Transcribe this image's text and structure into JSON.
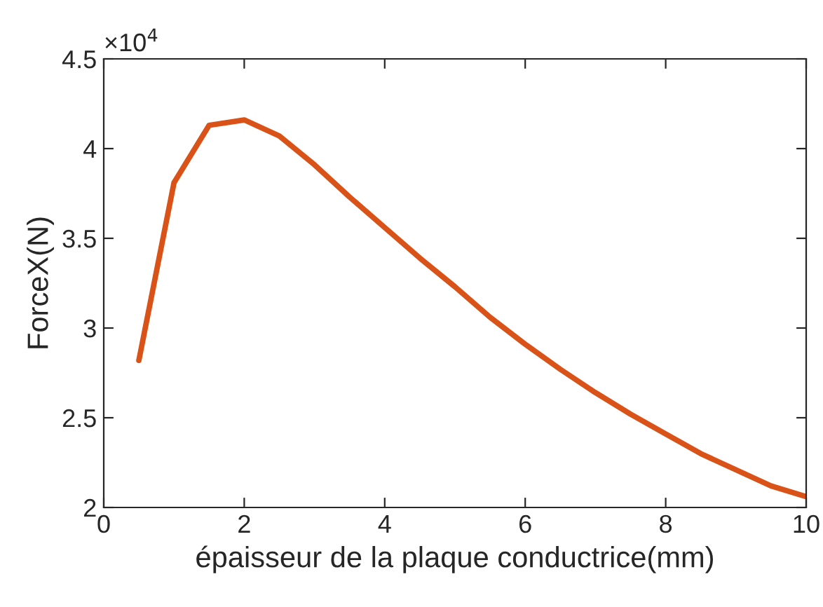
{
  "chart_data": {
    "type": "line",
    "xlabel": "épaisseur de la plaque conductrice(mm)",
    "ylabel": "ForceX(N)",
    "x": [
      0.5,
      1,
      1.5,
      2,
      2.5,
      3,
      3.5,
      4,
      4.5,
      5,
      5.5,
      6,
      6.5,
      7,
      7.5,
      8,
      8.5,
      9,
      9.5,
      10
    ],
    "series": [
      {
        "color": "#d95319",
        "values": [
          2.82,
          3.81,
          4.13,
          4.16,
          4.07,
          3.91,
          3.73,
          3.56,
          3.39,
          3.23,
          3.06,
          2.91,
          2.77,
          2.64,
          2.52,
          2.41,
          2.3,
          2.21,
          2.12,
          2.06
        ]
      }
    ],
    "xlim": [
      0,
      10
    ],
    "xticks": [
      0,
      2,
      4,
      6,
      8,
      10
    ],
    "ylim": [
      2,
      4.5
    ],
    "yticks": [
      2,
      2.5,
      3,
      3.5,
      4,
      4.5
    ],
    "annotations": [
      "×10$^{4}$"
    ],
    "grid": false,
    "legend": false
  }
}
